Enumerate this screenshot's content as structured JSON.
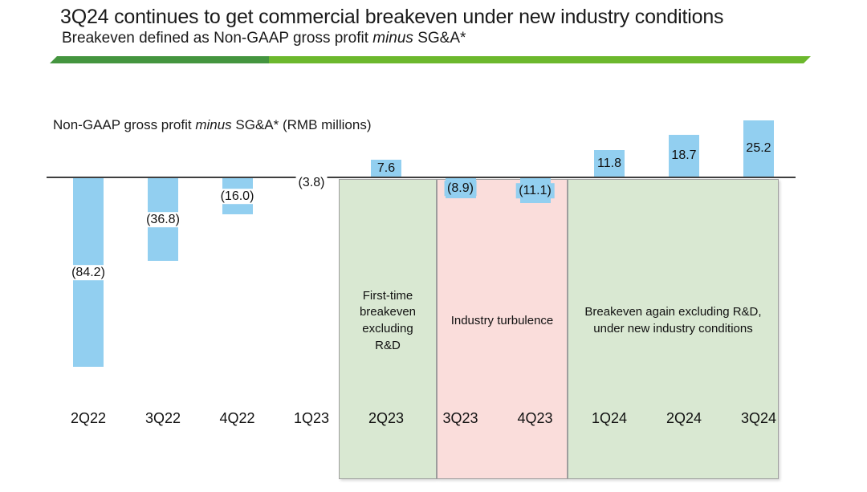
{
  "header": {
    "title": "3Q24 continues to get commercial breakeven under new industry conditions",
    "subtitle_prefix": "Breakeven defined as Non-GAAP gross profit ",
    "subtitle_italic": "minus",
    "subtitle_suffix": " SG&A*"
  },
  "divider_colors": {
    "dark_green": "#44953f",
    "light_green": "#6cb82d"
  },
  "chart_data": {
    "type": "bar",
    "title_prefix": "Non-GAAP gross profit ",
    "title_italic": "minus",
    "title_suffix": " SG&A* (RMB millions)",
    "units": "RMB millions",
    "categories": [
      "2Q22",
      "3Q22",
      "4Q22",
      "1Q23",
      "2Q23",
      "3Q23",
      "4Q23",
      "1Q24",
      "2Q24",
      "3Q24"
    ],
    "values": [
      -84.2,
      -36.8,
      -16.0,
      -3.8,
      7.6,
      -8.9,
      -11.1,
      11.8,
      18.7,
      25.2
    ],
    "labels": [
      "(84.2)",
      "(36.8)",
      "(16.0)",
      "(3.8)",
      "7.6",
      "(8.9)",
      "(11.1)",
      "11.8",
      "18.7",
      "25.2"
    ],
    "label_style": [
      "boxed",
      "boxed",
      "boxed",
      "boxed",
      "plain",
      "barbg",
      "barbg",
      "plain",
      "plain",
      "plain"
    ],
    "bar_color": "#92cff0",
    "axis_color": "#3f3f3f",
    "baseline_value": 0,
    "grid": false,
    "legend": false,
    "regions": [
      {
        "label": "First-time breakeven excluding R&D",
        "from": "2Q23",
        "to": "2Q23",
        "color": "#d9e8d2",
        "label_max_width": 84
      },
      {
        "label": "Industry turbulence",
        "from": "3Q23",
        "to": "4Q23",
        "color": "#fadddb",
        "label_max_width": 150
      },
      {
        "label": "Breakeven again excluding R&D, under new industry conditions",
        "from": "1Q24",
        "to": "3Q24",
        "color": "#d9e8d2",
        "label_max_width": 246
      }
    ]
  }
}
